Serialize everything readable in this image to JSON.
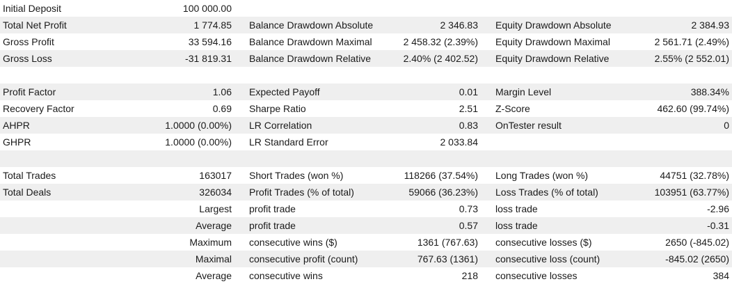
{
  "table": {
    "rows": [
      [
        "Initial Deposit",
        "100 000.00",
        null,
        null,
        null,
        null
      ],
      [
        "Total Net Profit",
        "1 774.85",
        "Balance Drawdown Absolute",
        "2 346.83",
        "Equity Drawdown Absolute",
        "2 384.93"
      ],
      [
        "Gross Profit",
        "33 594.16",
        "Balance Drawdown Maximal",
        "2 458.32 (2.39%)",
        "Equity Drawdown Maximal",
        "2 561.71 (2.49%)"
      ],
      [
        "Gross Loss",
        "-31 819.31",
        "Balance Drawdown Relative",
        "2.40% (2 402.52)",
        "Equity Drawdown Relative",
        "2.55% (2 552.01)"
      ],
      [
        null,
        null,
        null,
        null,
        null,
        null
      ],
      [
        "Profit Factor",
        "1.06",
        "Expected Payoff",
        "0.01",
        "Margin Level",
        "388.34%"
      ],
      [
        "Recovery Factor",
        "0.69",
        "Sharpe Ratio",
        "2.51",
        "Z-Score",
        "462.60 (99.74%)"
      ],
      [
        "AHPR",
        "1.0000 (0.00%)",
        "LR Correlation",
        "0.83",
        "OnTester result",
        "0"
      ],
      [
        "GHPR",
        "1.0000 (0.00%)",
        "LR Standard Error",
        "2 033.84",
        null,
        null
      ],
      [
        null,
        null,
        null,
        null,
        null,
        null
      ],
      [
        "Total Trades",
        "163017",
        "Short Trades (won %)",
        "118266 (37.54%)",
        "Long Trades (won %)",
        "44751 (32.78%)"
      ],
      [
        "Total Deals",
        "326034",
        "Profit Trades (% of total)",
        "59066 (36.23%)",
        "Loss Trades (% of total)",
        "103951 (63.77%)"
      ],
      [
        null,
        "Largest",
        "profit trade",
        "0.73",
        "loss trade",
        "-2.96"
      ],
      [
        null,
        "Average",
        "profit trade",
        "0.57",
        "loss trade",
        "-0.31"
      ],
      [
        null,
        "Maximum",
        "consecutive wins ($)",
        "1361 (767.63)",
        "consecutive losses ($)",
        "2650 (-845.02)"
      ],
      [
        null,
        "Maximal",
        "consecutive profit (count)",
        "767.63 (1361)",
        "consecutive loss (count)",
        "-845.02 (2650)"
      ],
      [
        null,
        "Average",
        "consecutive wins",
        "218",
        "consecutive losses",
        "384"
      ]
    ]
  }
}
